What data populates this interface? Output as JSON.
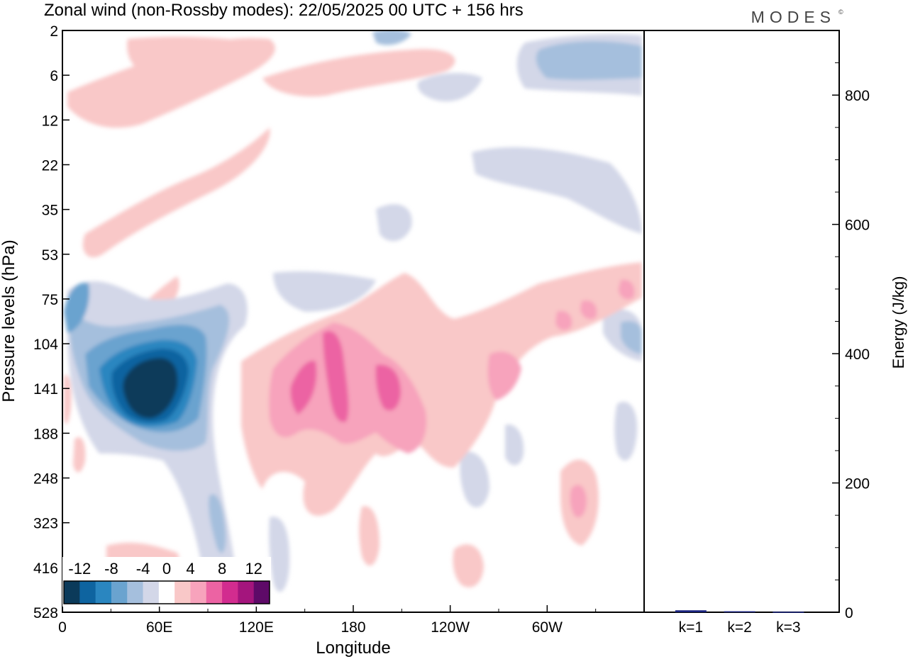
{
  "chart_data": [
    {
      "type": "heatmap",
      "title": "Zonal wind (non-Rossby modes):  22/05/2025  00 UTC  + 156 hrs",
      "brand": "MODES",
      "xlabel": "Longitude",
      "ylabel": "Pressure levels (hPa)",
      "x_ticks": [
        "0",
        "60E",
        "120E",
        "180",
        "120W",
        "60W"
      ],
      "y_ticks": [
        "2",
        "6",
        "12",
        "22",
        "35",
        "53",
        "75",
        "104",
        "141",
        "188",
        "248",
        "323",
        "416",
        "528"
      ],
      "grid": false,
      "colorbar": {
        "placement": "bottom-left",
        "tick_labels": [
          "-12",
          "-8",
          "-4",
          "0",
          "4",
          "8",
          "12"
        ],
        "bounds": [
          -14,
          -12,
          -10,
          -8,
          -6,
          -4,
          -2,
          2,
          4,
          6,
          8,
          10,
          12,
          14
        ],
        "colors": [
          "#0b3a5a",
          "#0e64a0",
          "#2a86c0",
          "#6aa3cf",
          "#a5bfdd",
          "#d3d7e8",
          "#ffffff",
          "#f9c8c8",
          "#f7a3bc",
          "#ec63a3",
          "#d22c8f",
          "#a4157d",
          "#5e0a68"
        ]
      },
      "features": [
        {
          "region": "lon 45-85, 104-188 hPa",
          "value": -13
        },
        {
          "region": "lon 15-110, 90-250 hPa",
          "value": -7
        },
        {
          "region": "lon 140-210, 104-200 hPa",
          "value": 8
        },
        {
          "region": "lon 140-225, 100-250 hPa",
          "value": 4
        },
        {
          "region": "lon 225-300, 75-140 hPa",
          "value": 3
        },
        {
          "region": "lon 320-335, 220-300 hPa",
          "value": 5
        },
        {
          "region": "lon 0-40, 40-60 hPa",
          "value": 3
        },
        {
          "region": "lon 280-360, 2-8 hPa",
          "value": -4
        }
      ]
    },
    {
      "type": "bar",
      "categories": [
        "k=1",
        "k=2",
        "k=3"
      ],
      "values": [
        3,
        1.5,
        0.8
      ],
      "ylabel": "Energy (J/kg)",
      "ylim": [
        0,
        900
      ],
      "y_ticks": [
        0,
        200,
        400,
        600,
        800
      ],
      "bar_color": "#1a237e"
    }
  ]
}
